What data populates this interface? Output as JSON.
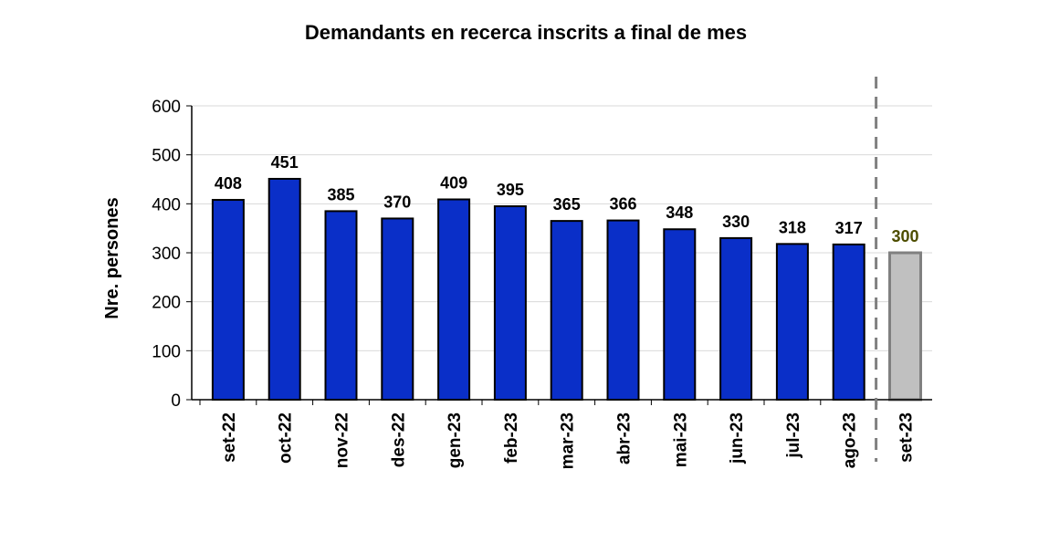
{
  "chart_data": {
    "type": "bar",
    "title": "Demandants en recerca inscrits  a final de mes",
    "ylabel": "Nre. persones",
    "xlabel": "",
    "ylim": [
      0,
      600
    ],
    "yticks": [
      0,
      100,
      200,
      300,
      400,
      500,
      600
    ],
    "grid": true,
    "categories": [
      "set-22",
      "oct-22",
      "nov-22",
      "des-22",
      "gen-23",
      "feb-23",
      "mar-23",
      "abr-23",
      "mai-23",
      "jun-23",
      "jul-23",
      "ago-23",
      "set-23"
    ],
    "values": [
      408,
      451,
      385,
      370,
      409,
      395,
      365,
      366,
      348,
      330,
      318,
      317,
      300
    ],
    "highlight_last": true,
    "separator_before_last": "dashed",
    "colors": {
      "bar": "#0a2fc8",
      "bar_outline": "#000000",
      "highlight_bar": "#c0c0c0",
      "highlight_outline": "#808080",
      "highlight_label": "#4d4d00",
      "grid": "#d9d9d9",
      "separator": "#808080"
    }
  }
}
